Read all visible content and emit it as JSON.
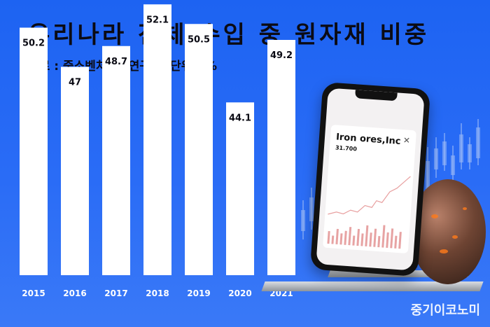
{
  "title": "우리나라 전체 수입 중 원자재 비중",
  "subtitle": "자료 : 중소벤처기업연구원, 단위 : %",
  "watermark": "중기이코노미",
  "phone": {
    "ticker": "Iron ores,Inc",
    "price": "31.700"
  },
  "colors": {
    "background": "#1d63f2",
    "bar": "#ffffff",
    "text": "#0b0b14"
  },
  "chart_data": {
    "type": "bar",
    "title": "우리나라 전체 수입 중 원자재 비중",
    "categories": [
      "2015",
      "2016",
      "2017",
      "2018",
      "2019",
      "2020",
      "2021"
    ],
    "values": [
      50.2,
      47,
      48.7,
      52.1,
      50.5,
      44.1,
      49.2
    ],
    "value_labels": [
      "50.2",
      "47",
      "48.7",
      "52.1",
      "50.5",
      "44.1",
      "49.2"
    ],
    "grid": false
  }
}
